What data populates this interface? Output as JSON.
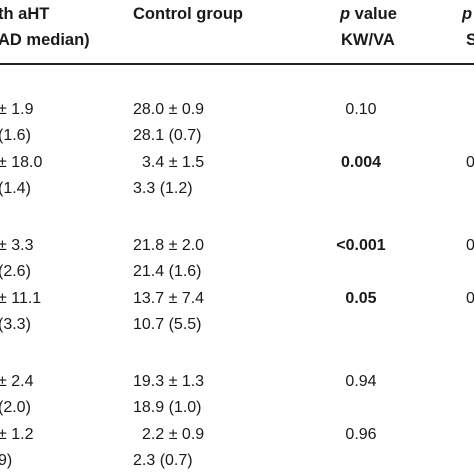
{
  "header": {
    "col1_line1": "th aHT",
    "col1_line2": "AD median)",
    "col2": "Control group",
    "col3_line1_p": "p",
    "col3_line1_rest": " value",
    "col3_line2": "KW/VA",
    "col4_line1": "p",
    "col4_line2": "S"
  },
  "rows": [
    {
      "c1a": "± 1.9",
      "c1b": "(1.6)",
      "c2a": "28.0 ± 0.9",
      "c2b": "28.1 (0.7)",
      "p": "0.10",
      "bold": false,
      "c4": ""
    },
    {
      "c1a": "± 18.0",
      "c1b": "(1.4)",
      "c2a": "3.4 ± 1.5",
      "c2b": "3.3 (1.2)",
      "p": "0.004",
      "bold": true,
      "c4": "0"
    },
    {
      "c1a": "± 3.3",
      "c1b": "(2.6)",
      "c2a": "21.8 ± 2.0",
      "c2b": "21.4 (1.6)",
      "p": "<0.001",
      "bold": true,
      "c4": "0"
    },
    {
      "c1a": "± 11.1",
      "c1b": "(3.3)",
      "c2a": "13.7 ± 7.4",
      "c2b": "10.7 (5.5)",
      "p": "0.05",
      "bold": true,
      "c4": "0"
    },
    {
      "c1a": "± 2.4",
      "c1b": "(2.0)",
      "c2a": "19.3 ± 1.3",
      "c2b": "18.9 (1.0)",
      "p": "0.94",
      "bold": false,
      "c4": ""
    },
    {
      "c1a": "± 1.2",
      "c1b": "9)",
      "c2a": "2.2 ± 0.9",
      "c2b": "2.3 (0.7)",
      "p": "0.96",
      "bold": false,
      "c4": ""
    }
  ]
}
